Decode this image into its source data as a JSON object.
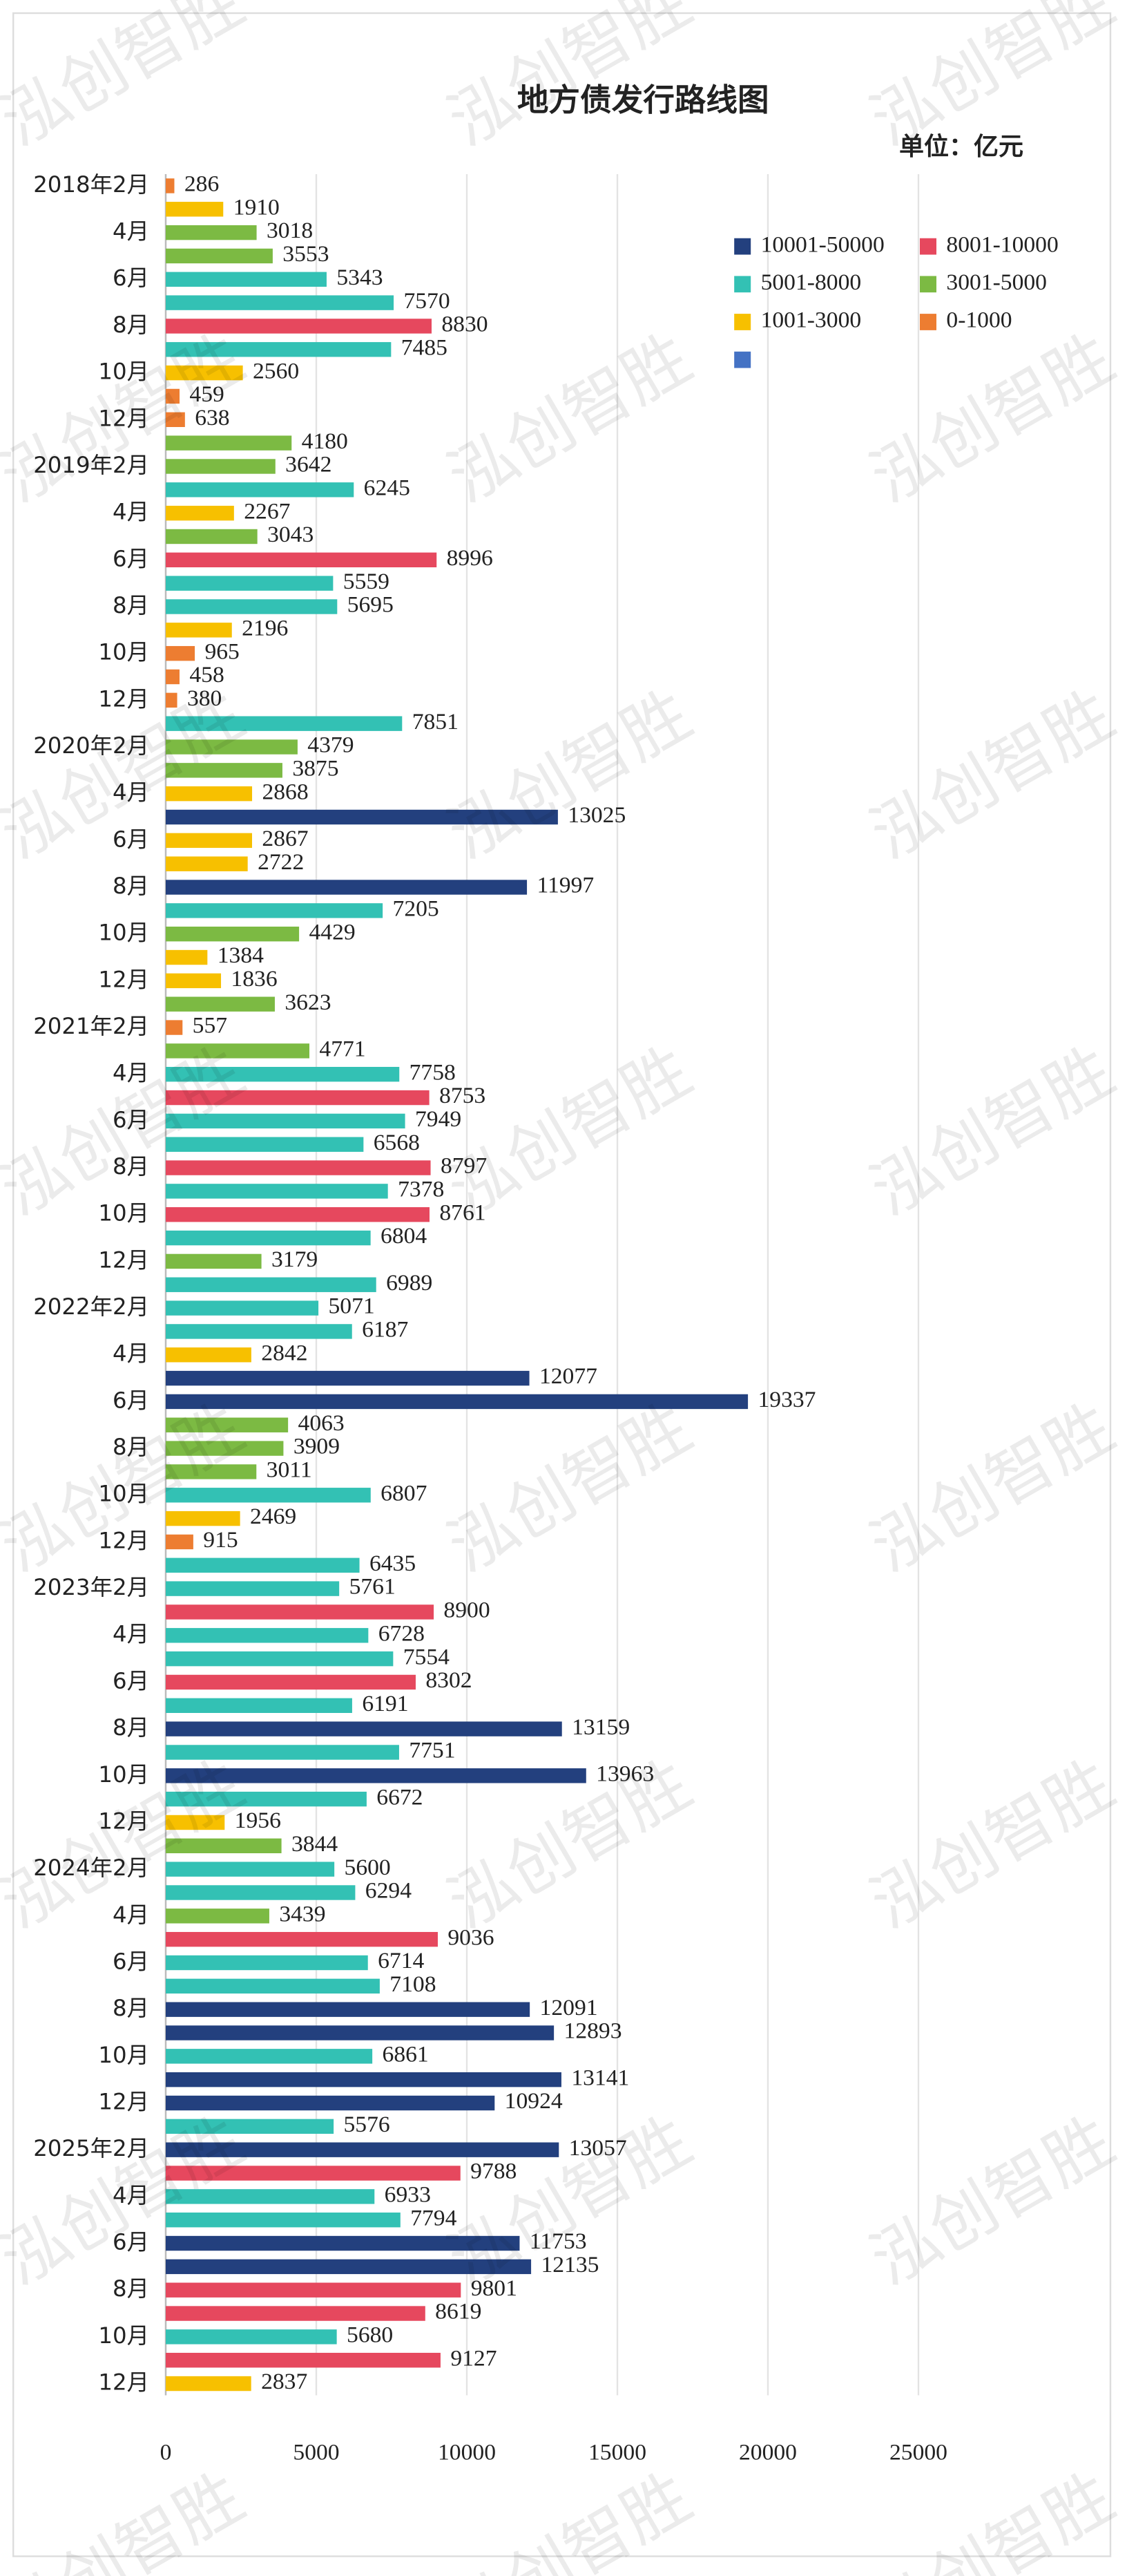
{
  "chart_data": {
    "type": "barh",
    "title": "地方债发行路线图",
    "unit_label": "单位：亿元",
    "watermark": "泓创智胜",
    "categories": [
      "2018年2月",
      null,
      "4月",
      null,
      "6月",
      null,
      "8月",
      null,
      "10月",
      null,
      "12月",
      null,
      "2019年2月",
      null,
      "4月",
      null,
      "6月",
      null,
      "8月",
      null,
      "10月",
      null,
      "12月",
      null,
      "2020年2月",
      null,
      "4月",
      null,
      "6月",
      null,
      "8月",
      null,
      "10月",
      null,
      "12月",
      null,
      "2021年2月",
      null,
      "4月",
      null,
      "6月",
      null,
      "8月",
      null,
      "10月",
      null,
      "12月",
      null,
      "2022年2月",
      null,
      "4月",
      null,
      "6月",
      null,
      "8月",
      null,
      "10月",
      null,
      "12月",
      null,
      "2023年2月",
      null,
      "4月",
      null,
      "6月",
      null,
      "8月",
      null,
      "10月",
      null,
      "12月",
      null,
      "2024年2月",
      null,
      "4月",
      null,
      "6月",
      null,
      "8月",
      null,
      "10月",
      null,
      "12月",
      null,
      "2025年2月",
      null,
      "4月",
      null,
      "6月",
      null,
      "8月",
      null,
      "10月",
      null,
      "12月"
    ],
    "values": [
      286,
      1910,
      3018,
      3553,
      5343,
      7570,
      8830,
      7485,
      2560,
      459,
      638,
      4180,
      3642,
      6245,
      2267,
      3043,
      8996,
      5559,
      5695,
      2196,
      965,
      458,
      380,
      7851,
      4379,
      3875,
      2868,
      13025,
      2867,
      2722,
      11997,
      7205,
      4429,
      1384,
      1836,
      3623,
      557,
      4771,
      7758,
      8753,
      7949,
      6568,
      8797,
      7378,
      8761,
      6804,
      3179,
      6989,
      5071,
      6187,
      2842,
      12077,
      19337,
      4063,
      3909,
      3011,
      6807,
      2469,
      915,
      6435,
      5761,
      8900,
      6728,
      7554,
      8302,
      6191,
      13159,
      7751,
      13963,
      6672,
      1956,
      3844,
      5600,
      6294,
      3439,
      9036,
      6714,
      7108,
      12091,
      12893,
      6861,
      13141,
      10924,
      5576,
      13057,
      9788,
      6933,
      7794,
      11753,
      12135,
      9801,
      8619,
      5680,
      9127,
      2837
    ],
    "colors": [
      "#ed7d31",
      "#f7c000",
      "#7cba43",
      "#7cba43",
      "#33c1b4",
      "#33c1b4",
      "#e6485e",
      "#33c1b4",
      "#f7c000",
      "#ed7d31",
      "#ed7d31",
      "#7cba43",
      "#7cba43",
      "#33c1b4",
      "#f7c000",
      "#7cba43",
      "#e6485e",
      "#33c1b4",
      "#33c1b4",
      "#f7c000",
      "#ed7d31",
      "#ed7d31",
      "#ed7d31",
      "#33c1b4",
      "#7cba43",
      "#7cba43",
      "#f7c000",
      "#23407e",
      "#f7c000",
      "#f7c000",
      "#23407e",
      "#33c1b4",
      "#7cba43",
      "#f7c000",
      "#f7c000",
      "#7cba43",
      "#ed7d31",
      "#7cba43",
      "#33c1b4",
      "#e6485e",
      "#33c1b4",
      "#33c1b4",
      "#e6485e",
      "#33c1b4",
      "#e6485e",
      "#33c1b4",
      "#7cba43",
      "#33c1b4",
      "#33c1b4",
      "#33c1b4",
      "#f7c000",
      "#23407e",
      "#23407e",
      "#7cba43",
      "#7cba43",
      "#7cba43",
      "#33c1b4",
      "#f7c000",
      "#ed7d31",
      "#33c1b4",
      "#33c1b4",
      "#e6485e",
      "#33c1b4",
      "#33c1b4",
      "#e6485e",
      "#33c1b4",
      "#23407e",
      "#33c1b4",
      "#23407e",
      "#33c1b4",
      "#f7c000",
      "#7cba43",
      "#33c1b4",
      "#33c1b4",
      "#7cba43",
      "#e6485e",
      "#33c1b4",
      "#33c1b4",
      "#23407e",
      "#23407e",
      "#33c1b4",
      "#23407e",
      "#23407e",
      "#33c1b4",
      "#23407e",
      "#e6485e",
      "#33c1b4",
      "#33c1b4",
      "#23407e",
      "#23407e",
      "#e6485e",
      "#e6485e",
      "#33c1b4",
      "#e6485e",
      "#f7c000"
    ],
    "legend": [
      {
        "name": "10001-50000",
        "color": "#23407e"
      },
      {
        "name": "8001-10000",
        "color": "#e6485e"
      },
      {
        "name": "5001-8000",
        "color": "#33c1b4"
      },
      {
        "name": "3001-5000",
        "color": "#7cba43"
      },
      {
        "name": "1001-3000",
        "color": "#f7c000"
      },
      {
        "name": "0-1000",
        "color": "#ed7d31"
      },
      {
        "color": "#4472c4"
      }
    ],
    "xlim": [
      0,
      30000
    ],
    "xticks": [
      0,
      5000,
      10000,
      15000,
      20000,
      25000
    ],
    "grid": true
  }
}
